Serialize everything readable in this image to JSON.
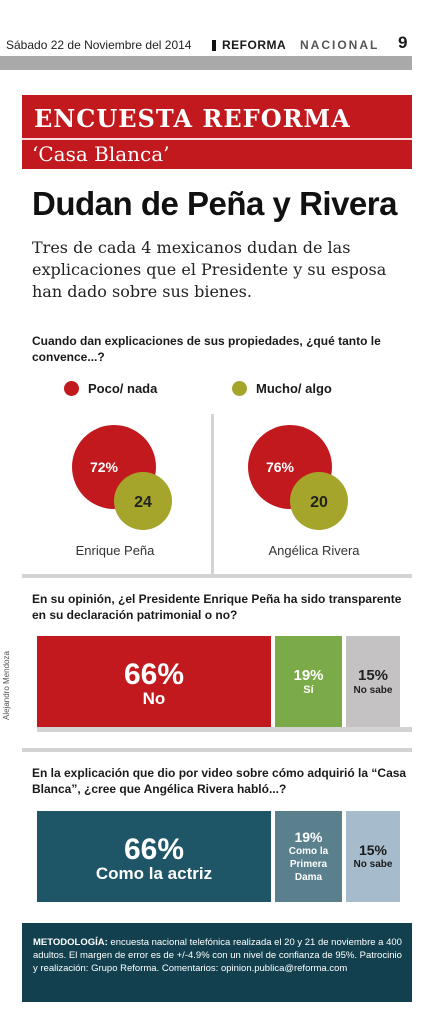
{
  "header": {
    "date": "Sábado 22 de Noviembre del 2014",
    "brand": "REFORMA",
    "section": "NACIONAL",
    "page": "9"
  },
  "banner": {
    "title": "ENCUESTA REFORMA",
    "subtitle": "‘Casa Blanca’"
  },
  "headline": "Dudan de Peña y Rivera",
  "dek": "Tres de cada 4 mexicanos dudan de las explicaciones que el Presidente y su esposa han dado sobre sus bienes.",
  "credit": "Alejandro Mendoza",
  "methodology": {
    "label": "METODOLOGÍA:",
    "text": "encuesta nacional telefónica realizada el 20 y 21 de noviembre a 400 adultos. El margen de error es de +/-4.9% con un nivel de confianza de 95%. Patrocinio y realización: Grupo Reforma. Comentarios: opinion.publica@reforma.com"
  },
  "colors": {
    "red": "#c1191e",
    "olive": "#a5a52b",
    "green": "#7aab48",
    "grey": "#c4c2c2",
    "teal_dark": "#1e5567",
    "teal_mid": "#5a7f8d",
    "teal_light": "#a6bccc",
    "navy": "#12404f"
  },
  "chart_data": [
    {
      "type": "bubble",
      "question": "Cuando dan explicaciones de sus propiedades, ¿qué tanto le convence...?",
      "legend": [
        "Poco/ nada",
        "Mucho/ algo"
      ],
      "categories": [
        "Enrique Peña",
        "Angélica Rivera"
      ],
      "series": [
        {
          "name": "Poco/ nada",
          "values": [
            72,
            76
          ],
          "labels": [
            "72%",
            "76%"
          ]
        },
        {
          "name": "Mucho/ algo",
          "values": [
            24,
            20
          ],
          "labels": [
            "24",
            "20"
          ]
        }
      ]
    },
    {
      "type": "bar",
      "question": "En su opinión, ¿el Presidente Enrique Peña ha sido transparente en su declaración patrimonial o no?",
      "segments": [
        {
          "label": "No",
          "value": 66,
          "value_label": "66%"
        },
        {
          "label": "Sí",
          "value": 19,
          "value_label": "19%"
        },
        {
          "label": "No sabe",
          "value": 15,
          "value_label": "15%"
        }
      ]
    },
    {
      "type": "bar",
      "question": "En la explicación que dio por video sobre cómo adquirió la “Casa Blanca”, ¿cree que Angélica Rivera habló...?",
      "segments": [
        {
          "label": "Como la actriz",
          "value": 66,
          "value_label": "66%"
        },
        {
          "label": "Como la Primera Dama",
          "value": 19,
          "value_label": "19%"
        },
        {
          "label": "No sabe",
          "value": 15,
          "value_label": "15%"
        }
      ]
    }
  ]
}
